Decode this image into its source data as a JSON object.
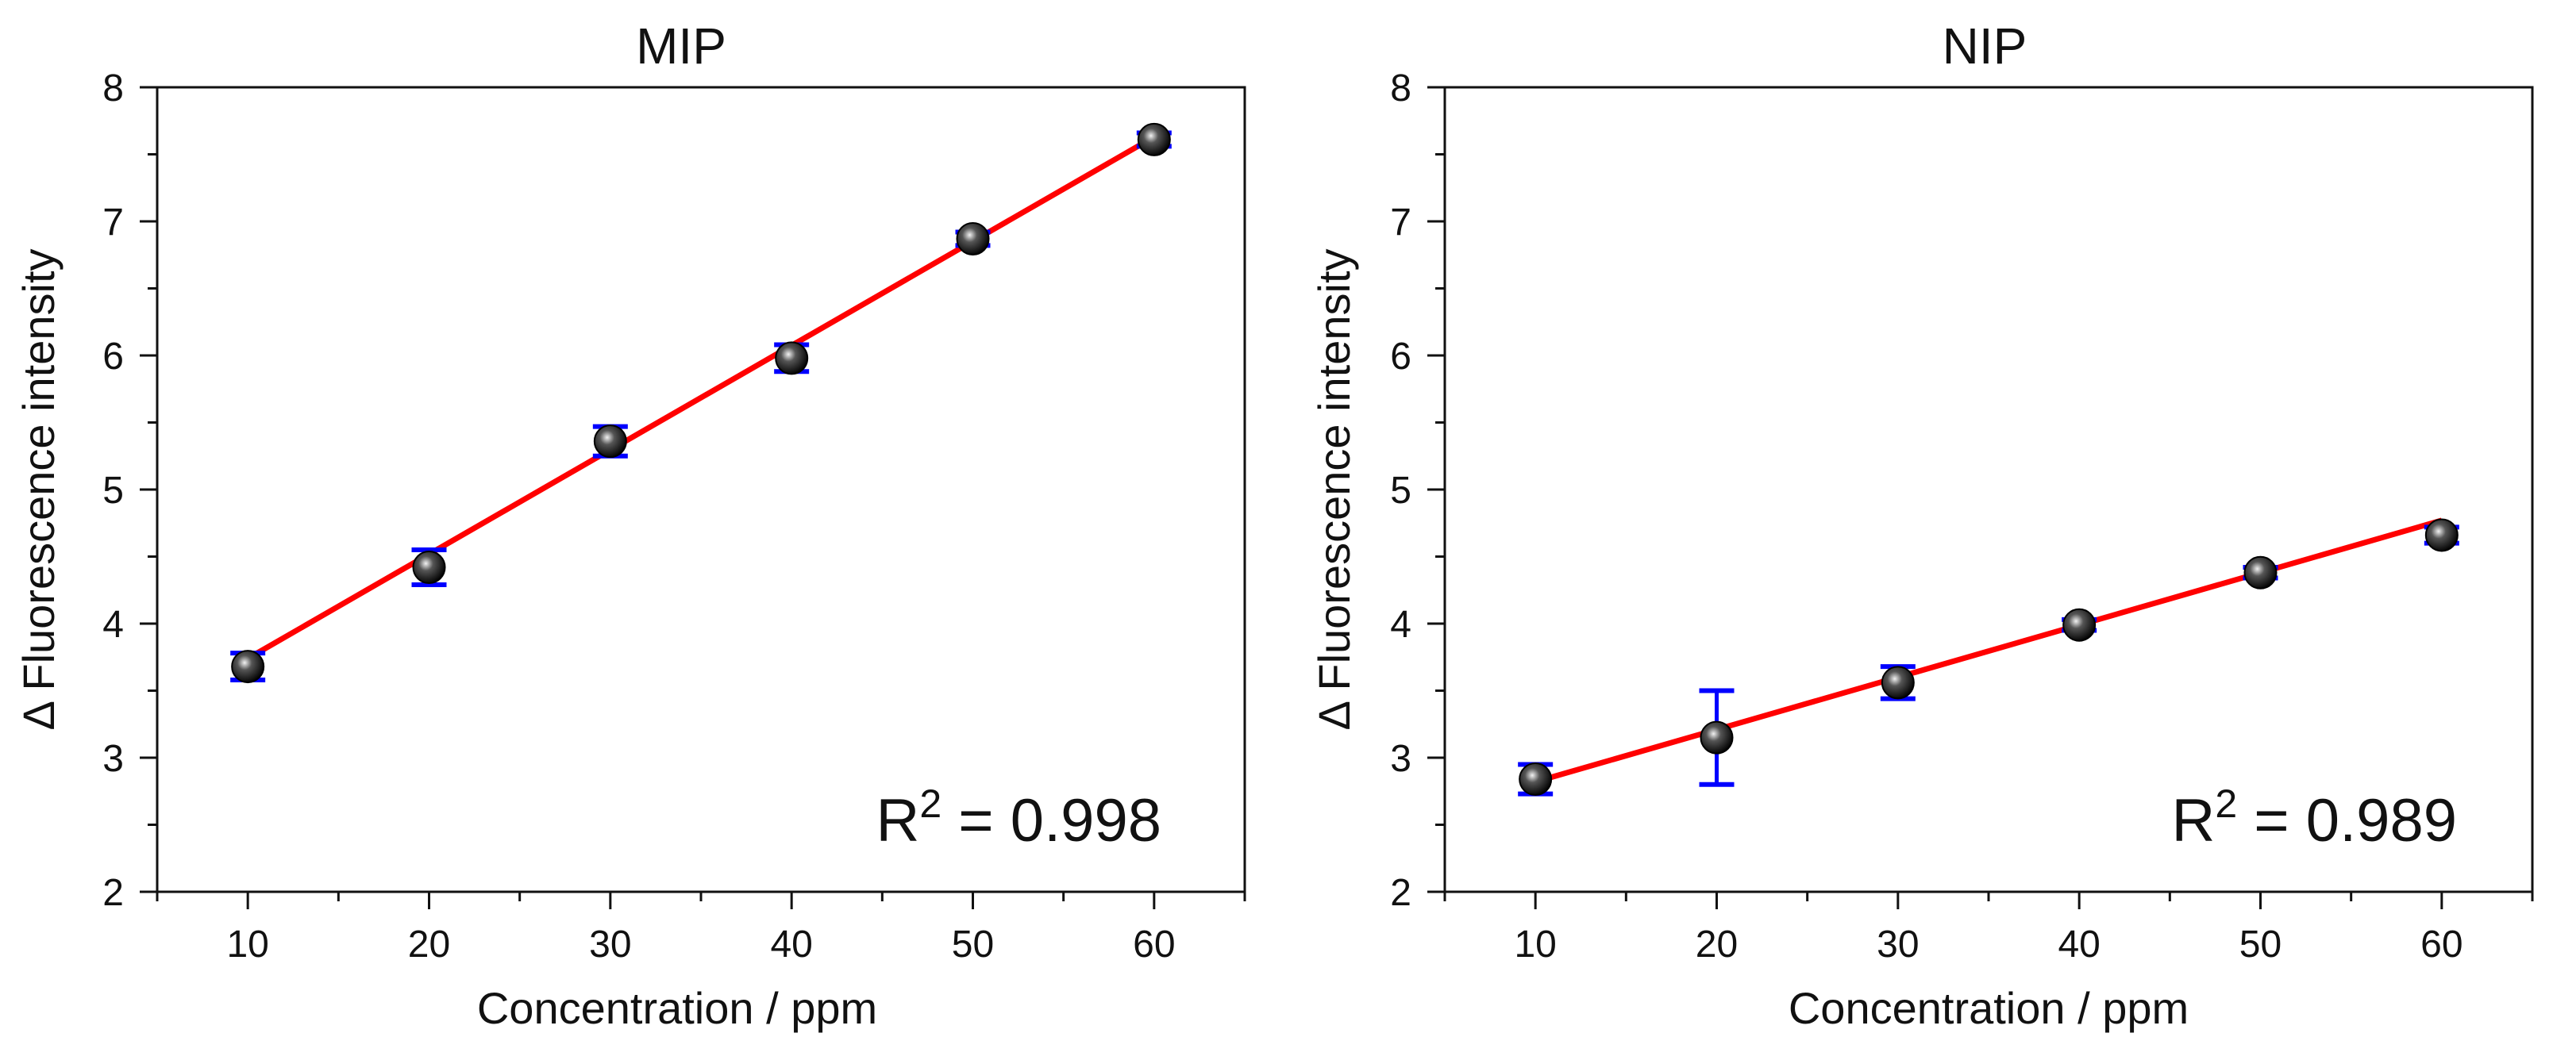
{
  "chart_data": [
    {
      "type": "scatter",
      "title": "MIP",
      "xlabel": "Concentration / ppm",
      "ylabel": "Δ Fluorescence intensity",
      "xlim": [
        5,
        65
      ],
      "ylim": [
        2,
        8
      ],
      "xticks": [
        "10",
        "20",
        "30",
        "40",
        "50",
        "60"
      ],
      "yticks": [
        "2",
        "3",
        "4",
        "5",
        "6",
        "7",
        "8"
      ],
      "x": [
        10,
        20,
        30,
        40,
        50,
        60
      ],
      "y": [
        3.68,
        4.42,
        5.36,
        5.98,
        6.87,
        7.61
      ],
      "yerr": [
        0.1,
        0.13,
        0.11,
        0.1,
        0.05,
        0.05
      ],
      "fit": {
        "x": [
          10,
          60
        ],
        "y": [
          3.74,
          7.63
        ]
      },
      "r2_prefix": "R",
      "r2_sup": "2",
      "r2_value": " = 0.998",
      "colors": {
        "fit": "#ff0000",
        "errorbar": "#0000ff",
        "marker": "#111111"
      }
    },
    {
      "type": "scatter",
      "title": "NIP",
      "xlabel": "Concentration / ppm",
      "ylabel": "Δ Fluorescence intensity",
      "xlim": [
        5,
        65
      ],
      "ylim": [
        2,
        8
      ],
      "xticks": [
        "10",
        "20",
        "30",
        "40",
        "50",
        "60"
      ],
      "yticks": [
        "2",
        "3",
        "4",
        "5",
        "6",
        "7",
        "8"
      ],
      "x": [
        10,
        20,
        30,
        40,
        50,
        60
      ],
      "y": [
        2.84,
        3.15,
        3.56,
        3.99,
        4.38,
        4.66
      ],
      "yerr": [
        0.11,
        0.35,
        0.12,
        0.04,
        0.04,
        0.06
      ],
      "fit": {
        "x": [
          10,
          60
        ],
        "y": [
          2.82,
          4.77
        ]
      },
      "r2_prefix": "R",
      "r2_sup": "2",
      "r2_value": " = 0.989",
      "colors": {
        "fit": "#ff0000",
        "errorbar": "#0000ff",
        "marker": "#111111"
      }
    }
  ]
}
